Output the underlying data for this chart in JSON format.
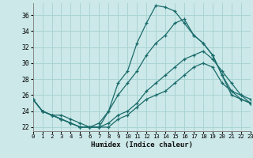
{
  "xlabel": "Humidex (Indice chaleur)",
  "xlim": [
    0,
    23
  ],
  "ylim": [
    21.5,
    37.5
  ],
  "yticks": [
    22,
    24,
    26,
    28,
    30,
    32,
    34,
    36
  ],
  "xticks": [
    0,
    1,
    2,
    3,
    4,
    5,
    6,
    7,
    8,
    9,
    10,
    11,
    12,
    13,
    14,
    15,
    16,
    17,
    18,
    19,
    20,
    21,
    22,
    23
  ],
  "background_color": "#cce8e8",
  "grid_color": "#aad4d4",
  "line_color": "#1a6b6b",
  "series": [
    {
      "x": [
        0,
        1,
        2,
        3,
        4,
        5,
        6,
        7,
        8,
        9,
        10,
        11,
        12,
        13,
        14,
        15,
        16,
        17,
        18,
        19,
        20,
        21,
        22,
        23
      ],
      "y": [
        25.5,
        24.0,
        23.5,
        23.5,
        23.0,
        22.5,
        22.0,
        22.0,
        24.0,
        27.5,
        29.0,
        32.5,
        35.0,
        37.2,
        37.0,
        36.5,
        35.0,
        33.5,
        32.5,
        31.0,
        28.5,
        26.0,
        25.5,
        25.0
      ]
    },
    {
      "x": [
        0,
        1,
        2,
        3,
        4,
        5,
        6,
        7,
        8,
        9,
        10,
        11,
        12,
        13,
        14,
        15,
        16,
        17,
        18,
        19,
        20,
        21,
        22,
        23
      ],
      "y": [
        25.5,
        24.0,
        23.5,
        23.0,
        22.5,
        22.0,
        22.0,
        22.5,
        24.0,
        26.0,
        27.5,
        29.0,
        31.0,
        32.5,
        33.5,
        35.0,
        35.5,
        33.5,
        32.5,
        31.0,
        28.5,
        26.5,
        26.0,
        25.5
      ]
    },
    {
      "x": [
        0,
        1,
        2,
        3,
        4,
        5,
        6,
        7,
        8,
        9,
        10,
        11,
        12,
        13,
        14,
        15,
        16,
        17,
        18,
        19,
        20,
        21,
        22,
        23
      ],
      "y": [
        25.5,
        24.0,
        23.5,
        23.0,
        22.5,
        22.0,
        22.0,
        22.0,
        22.5,
        23.5,
        24.0,
        25.0,
        26.5,
        27.5,
        28.5,
        29.5,
        30.5,
        31.0,
        31.5,
        30.5,
        29.0,
        27.5,
        26.0,
        25.0
      ]
    },
    {
      "x": [
        0,
        1,
        2,
        3,
        4,
        5,
        6,
        7,
        8,
        9,
        10,
        11,
        12,
        13,
        14,
        15,
        16,
        17,
        18,
        19,
        20,
        21,
        22,
        23
      ],
      "y": [
        25.5,
        24.0,
        23.5,
        23.0,
        22.5,
        22.0,
        22.0,
        22.0,
        22.0,
        23.0,
        23.5,
        24.5,
        25.5,
        26.0,
        26.5,
        27.5,
        28.5,
        29.5,
        30.0,
        29.5,
        27.5,
        26.5,
        25.5,
        25.0
      ]
    }
  ]
}
